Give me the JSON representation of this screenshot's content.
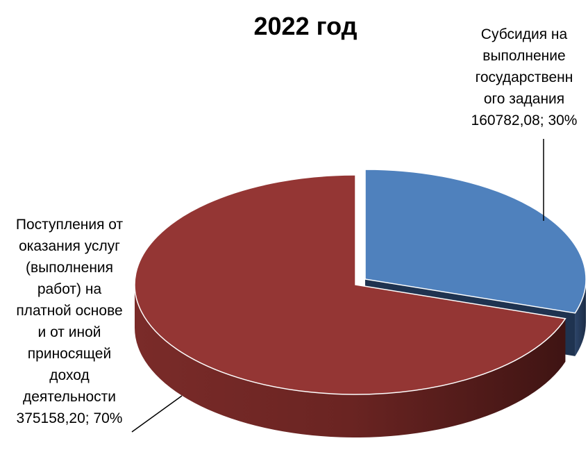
{
  "chart_data": {
    "type": "pie3d",
    "title": "2022 год",
    "categories": [
      "Субсидия на выполнение государственного задания",
      "Поступления от оказания услуг (выполнения работ) на платной основе и от иной приносящей доход деятельности"
    ],
    "values": [
      160782.08,
      375158.2
    ],
    "value_labels": [
      "160782,08; 30%",
      "375158,20; 70%"
    ],
    "colors": [
      "#4f81bd",
      "#943634"
    ]
  }
}
